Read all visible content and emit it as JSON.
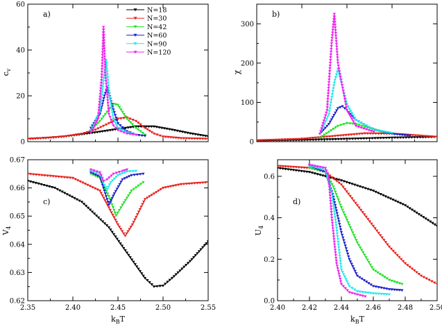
{
  "series_meta": [
    {
      "name": "N=18",
      "color": "#000000",
      "marker": "triangle-down"
    },
    {
      "name": "N=30",
      "color": "#e8201c",
      "marker": "triangle-down"
    },
    {
      "name": "N=42",
      "color": "#22e026",
      "marker": "triangle-down"
    },
    {
      "name": "N=60",
      "color": "#1c1fc8",
      "marker": "triangle-down"
    },
    {
      "name": "N=90",
      "color": "#22e8e8",
      "marker": "triangle-down"
    },
    {
      "name": "N=120",
      "color": "#ee22ee",
      "marker": "triangle-down"
    }
  ],
  "chart_data": [
    {
      "type": "line",
      "panel_label": "a)",
      "xlabel": "",
      "ylabel": "cv",
      "xlim": [
        2.35,
        2.55
      ],
      "ylim": [
        0,
        60
      ],
      "xticks": [
        2.35,
        2.4,
        2.45,
        2.5,
        2.55
      ],
      "yticks": [
        0,
        20,
        40,
        60
      ],
      "legend": "top-center",
      "series": [
        {
          "name": "N=18",
          "x": [
            2.35,
            2.37,
            2.39,
            2.41,
            2.43,
            2.45,
            2.47,
            2.49,
            2.51,
            2.53,
            2.55
          ],
          "y": [
            1.2,
            1.6,
            2.2,
            3.2,
            4.3,
            5.5,
            6.6,
            6.6,
            5.2,
            3.6,
            2.3
          ]
        },
        {
          "name": "N=30",
          "x": [
            2.35,
            2.37,
            2.39,
            2.41,
            2.425,
            2.44,
            2.45,
            2.46,
            2.47,
            2.48,
            2.49,
            2.5,
            2.52,
            2.55
          ],
          "y": [
            1.2,
            1.6,
            2.2,
            3.4,
            5.2,
            8,
            10,
            10.5,
            9,
            6,
            3.5,
            2.2,
            1.5,
            1.2
          ]
        },
        {
          "name": "N=42",
          "x": [
            2.42,
            2.43,
            2.44,
            2.445,
            2.45,
            2.455,
            2.46,
            2.47,
            2.48
          ],
          "y": [
            5,
            9,
            14,
            16.5,
            16,
            13,
            10,
            6,
            3
          ]
        },
        {
          "name": "N=60",
          "x": [
            2.42,
            2.43,
            2.435,
            2.438,
            2.44,
            2.445,
            2.45,
            2.46,
            2.47,
            2.48
          ],
          "y": [
            6,
            12,
            20,
            23.5,
            21,
            14,
            8,
            4.5,
            3,
            2.5
          ]
        },
        {
          "name": "N=90",
          "x": [
            2.42,
            2.43,
            2.435,
            2.437,
            2.44,
            2.445,
            2.45,
            2.46,
            2.47
          ],
          "y": [
            5,
            13,
            30,
            35.5,
            22,
            10,
            6,
            4,
            3
          ]
        },
        {
          "name": "N=120",
          "x": [
            2.42,
            2.428,
            2.432,
            2.434,
            2.436,
            2.44,
            2.445,
            2.45,
            2.46,
            2.47
          ],
          "y": [
            4,
            10,
            28,
            50,
            30,
            12,
            7,
            5,
            3.5,
            3
          ]
        }
      ]
    },
    {
      "type": "line",
      "panel_label": "b)",
      "xlabel": "",
      "ylabel": "χ",
      "xlim": [
        2.35,
        2.55
      ],
      "ylim": [
        0,
        350
      ],
      "xticks": [
        2.35,
        2.4,
        2.45,
        2.5,
        2.55
      ],
      "yticks": [
        0,
        100,
        200,
        300
      ],
      "legend": "none",
      "series": [
        {
          "name": "N=18",
          "x": [
            2.35,
            2.4,
            2.45,
            2.5,
            2.55
          ],
          "y": [
            2,
            4,
            7,
            10,
            12
          ]
        },
        {
          "name": "N=30",
          "x": [
            2.35,
            2.4,
            2.44,
            2.47,
            2.5,
            2.52,
            2.55
          ],
          "y": [
            3,
            7,
            15,
            21,
            20,
            17,
            12
          ]
        },
        {
          "name": "N=42",
          "x": [
            2.42,
            2.43,
            2.44,
            2.45,
            2.46,
            2.47,
            2.49,
            2.5
          ],
          "y": [
            10,
            25,
            40,
            47,
            45,
            38,
            25,
            20
          ]
        },
        {
          "name": "N=60",
          "x": [
            2.42,
            2.43,
            2.44,
            2.445,
            2.45,
            2.46,
            2.48,
            2.5,
            2.52
          ],
          "y": [
            20,
            45,
            85,
            90,
            80,
            55,
            30,
            20,
            15
          ]
        },
        {
          "name": "N=90",
          "x": [
            2.42,
            2.43,
            2.436,
            2.44,
            2.45,
            2.46,
            2.48,
            2.5
          ],
          "y": [
            20,
            70,
            150,
            185,
            95,
            55,
            30,
            22
          ]
        },
        {
          "name": "N=120",
          "x": [
            2.42,
            2.428,
            2.433,
            2.436,
            2.44,
            2.45,
            2.46,
            2.48
          ],
          "y": [
            20,
            80,
            250,
            325,
            200,
            80,
            40,
            25
          ]
        }
      ]
    },
    {
      "type": "line",
      "panel_label": "c)",
      "xlabel": "kBT",
      "ylabel": "V4",
      "xlim": [
        2.35,
        2.55
      ],
      "ylim": [
        0.62,
        0.67
      ],
      "xticks": [
        2.35,
        2.4,
        2.45,
        2.5,
        2.55
      ],
      "yticks": [
        0.62,
        0.63,
        0.64,
        0.65,
        0.66,
        0.67
      ],
      "legend": "none",
      "series": [
        {
          "name": "N=18",
          "x": [
            2.35,
            2.38,
            2.41,
            2.44,
            2.46,
            2.48,
            2.49,
            2.5,
            2.51,
            2.53,
            2.55
          ],
          "y": [
            0.6625,
            0.66,
            0.655,
            0.646,
            0.637,
            0.628,
            0.625,
            0.6253,
            0.628,
            0.634,
            0.641
          ]
        },
        {
          "name": "N=30",
          "x": [
            2.35,
            2.4,
            2.43,
            2.45,
            2.458,
            2.466,
            2.48,
            2.5,
            2.52,
            2.55
          ],
          "y": [
            0.665,
            0.6635,
            0.659,
            0.647,
            0.643,
            0.647,
            0.656,
            0.66,
            0.6613,
            0.662
          ]
        },
        {
          "name": "N=42",
          "x": [
            2.42,
            2.43,
            2.44,
            2.448,
            2.455,
            2.465,
            2.478
          ],
          "y": [
            0.665,
            0.6635,
            0.657,
            0.6502,
            0.654,
            0.659,
            0.662
          ]
        },
        {
          "name": "N=60",
          "x": [
            2.42,
            2.43,
            2.436,
            2.44,
            2.446,
            2.455,
            2.465,
            2.478
          ],
          "y": [
            0.6655,
            0.664,
            0.658,
            0.654,
            0.658,
            0.663,
            0.6645,
            0.665
          ]
        },
        {
          "name": "N=90",
          "x": [
            2.42,
            2.43,
            2.435,
            2.438,
            2.442,
            2.45,
            2.46,
            2.47
          ],
          "y": [
            0.666,
            0.665,
            0.661,
            0.6595,
            0.662,
            0.6645,
            0.6658,
            0.666
          ]
        },
        {
          "name": "N=120",
          "x": [
            2.42,
            2.43,
            2.434,
            2.438,
            2.445,
            2.455,
            2.46
          ],
          "y": [
            0.6665,
            0.6655,
            0.6625,
            0.663,
            0.665,
            0.666,
            0.6665
          ]
        }
      ]
    },
    {
      "type": "line",
      "panel_label": "d)",
      "xlabel": "kBT",
      "ylabel": "U4",
      "xlim": [
        2.4,
        2.5
      ],
      "ylim": [
        0,
        0.68
      ],
      "xticks": [
        2.4,
        2.42,
        2.44,
        2.46,
        2.48,
        2.5
      ],
      "yticks": [
        0,
        0.2,
        0.4,
        0.6
      ],
      "legend": "none",
      "series": [
        {
          "name": "N=18",
          "x": [
            2.4,
            2.42,
            2.44,
            2.46,
            2.48,
            2.5
          ],
          "y": [
            0.64,
            0.62,
            0.58,
            0.53,
            0.46,
            0.36
          ]
        },
        {
          "name": "N=30",
          "x": [
            2.4,
            2.42,
            2.43,
            2.44,
            2.45,
            2.46,
            2.47,
            2.48,
            2.49,
            2.5
          ],
          "y": [
            0.65,
            0.64,
            0.62,
            0.56,
            0.46,
            0.36,
            0.26,
            0.18,
            0.12,
            0.08
          ]
        },
        {
          "name": "N=42",
          "x": [
            2.42,
            2.43,
            2.435,
            2.44,
            2.45,
            2.46,
            2.47,
            2.478
          ],
          "y": [
            0.64,
            0.62,
            0.55,
            0.45,
            0.28,
            0.15,
            0.1,
            0.08
          ]
        },
        {
          "name": "N=60",
          "x": [
            2.42,
            2.43,
            2.435,
            2.44,
            2.445,
            2.45,
            2.46,
            2.47,
            2.478
          ],
          "y": [
            0.65,
            0.62,
            0.5,
            0.33,
            0.2,
            0.12,
            0.07,
            0.055,
            0.05
          ]
        },
        {
          "name": "N=90",
          "x": [
            2.42,
            2.43,
            2.434,
            2.437,
            2.44,
            2.445,
            2.45,
            2.46,
            2.47
          ],
          "y": [
            0.65,
            0.63,
            0.52,
            0.35,
            0.15,
            0.07,
            0.045,
            0.035,
            0.03
          ]
        },
        {
          "name": "N=120",
          "x": [
            2.42,
            2.43,
            2.432,
            2.434,
            2.437,
            2.44,
            2.445,
            2.45,
            2.455
          ],
          "y": [
            0.655,
            0.64,
            0.6,
            0.4,
            0.18,
            0.08,
            0.04,
            0.03,
            0.02
          ]
        }
      ]
    }
  ]
}
